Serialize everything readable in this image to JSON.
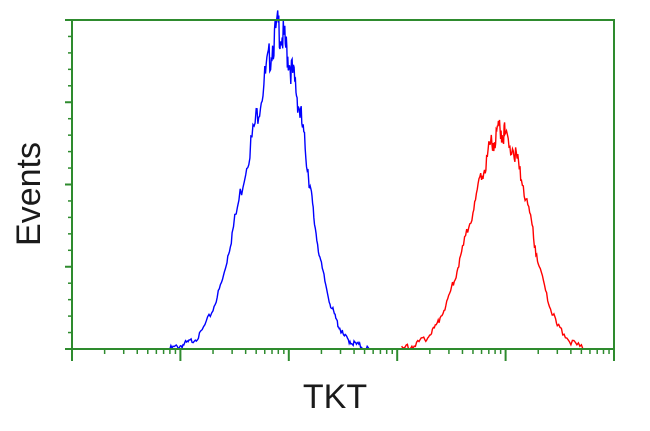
{
  "chart_data": {
    "type": "line",
    "title": "",
    "xlabel": "TKT",
    "ylabel": "Events",
    "x_scale": "log",
    "xlim": [
      1,
      100000
    ],
    "ylim": [
      0,
      100
    ],
    "grid": false,
    "legend": "none",
    "frame_color": "#2e8b2e",
    "series": [
      {
        "color": "#0000ff",
        "x": [
          8,
          10,
          12,
          15,
          20,
          25,
          30,
          40,
          50,
          60,
          70,
          80,
          90,
          100,
          115,
          130,
          150,
          170,
          200,
          240,
          280,
          320,
          380,
          450,
          550
        ],
        "y": [
          0,
          1,
          2,
          4,
          12,
          22,
          35,
          55,
          70,
          82,
          92,
          98,
          94,
          88,
          80,
          70,
          55,
          40,
          25,
          14,
          8,
          4,
          2,
          1,
          0
        ]
      },
      {
        "color": "#ff0000",
        "x": [
          1100,
          1400,
          1800,
          2200,
          2700,
          3300,
          4000,
          5000,
          6000,
          7000,
          8000,
          9000,
          10000,
          12000,
          14000,
          17000,
          20000,
          25000,
          30000,
          40000,
          55000
        ],
        "y": [
          0,
          1,
          3,
          6,
          12,
          20,
          30,
          42,
          53,
          60,
          64,
          67,
          65,
          60,
          52,
          40,
          26,
          14,
          7,
          2,
          0
        ]
      }
    ]
  }
}
